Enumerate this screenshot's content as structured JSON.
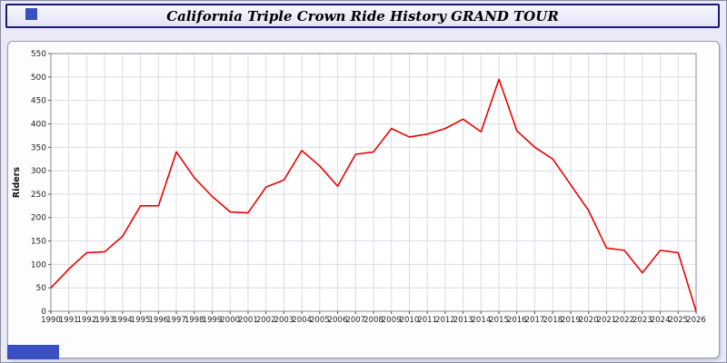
{
  "page": {
    "background": "#e9e9f8",
    "accent_blue": "#3a50c0"
  },
  "header": {
    "title": "California Triple Crown Ride History GRAND TOUR"
  },
  "chart_data": {
    "type": "line",
    "title": "California Triple Crown Ride History GRAND TOUR",
    "xlabel": "",
    "ylabel": "Riders",
    "ylim": [
      0,
      550
    ],
    "ytick_step": 50,
    "grid": true,
    "legend_position": "none",
    "line_color": "#ee0000",
    "grid_color": "#dcdce4",
    "axis_text_color": "#222222",
    "plot_background": "#ffffff",
    "categories": [
      1990,
      1991,
      1992,
      1993,
      1994,
      1995,
      1996,
      1997,
      1998,
      1999,
      2000,
      2001,
      2002,
      2003,
      2004,
      2005,
      2006,
      2007,
      2008,
      2009,
      2010,
      2011,
      2012,
      2013,
      2014,
      2015,
      2016,
      2017,
      2018,
      2019,
      2020,
      2021,
      2022,
      2023,
      2024,
      2025,
      2026
    ],
    "series": [
      {
        "name": "Riders",
        "values": [
          50,
          90,
          125,
          127,
          160,
          225,
          225,
          340,
          285,
          245,
          212,
          210,
          265,
          280,
          343,
          310,
          267,
          335,
          340,
          390,
          372,
          378,
          390,
          410,
          383,
          495,
          385,
          350,
          325,
          270,
          215,
          135,
          130,
          82,
          130,
          125,
          0
        ]
      }
    ]
  }
}
